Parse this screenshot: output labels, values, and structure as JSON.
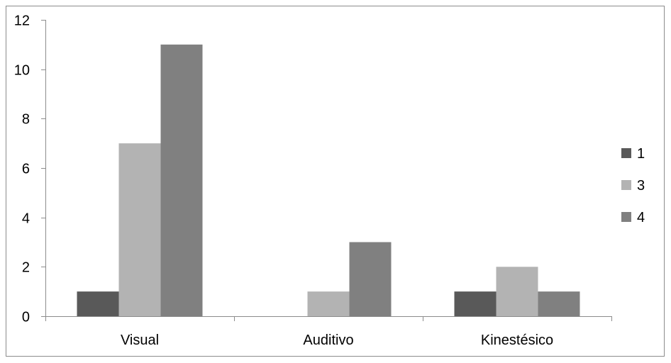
{
  "chart_data": {
    "type": "bar",
    "categories": [
      "Visual",
      "Auditivo",
      "Kinestésico"
    ],
    "series": [
      {
        "name": "1",
        "values": [
          1,
          0,
          1
        ],
        "color": "#595959"
      },
      {
        "name": "3",
        "values": [
          7,
          1,
          2
        ],
        "color": "#b3b3b3"
      },
      {
        "name": "4",
        "values": [
          11,
          3,
          1
        ],
        "color": "#808080"
      }
    ],
    "ylim": [
      0,
      12
    ],
    "yticks": [
      "0",
      "2",
      "4",
      "6",
      "8",
      "10",
      "12"
    ],
    "grid": false,
    "legend_position": "right"
  }
}
